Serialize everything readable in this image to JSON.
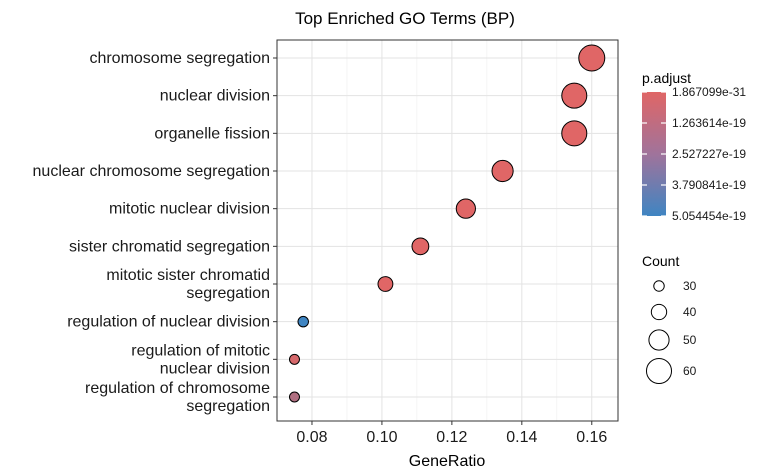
{
  "chart_data": {
    "type": "scatter",
    "title": "Top Enriched GO Terms (BP)",
    "xlabel": "GeneRatio",
    "ylabel": "",
    "xlim": [
      0.07,
      0.1675
    ],
    "xticks": [
      0.08,
      0.1,
      0.12,
      0.14,
      0.16
    ],
    "xtick_labels": [
      "0.08",
      "0.10",
      "0.12",
      "0.14",
      "0.16"
    ],
    "grid": true,
    "categories": [
      "chromosome segregation",
      "nuclear division",
      "organelle fission",
      "nuclear chromosome segregation",
      "mitotic nuclear division",
      "sister chromatid segregation",
      "mitotic sister chromatid segregation",
      "regulation of nuclear division",
      "regulation of mitotic nuclear division",
      "regulation of chromosome segregation"
    ],
    "category_label_lines": [
      [
        "chromosome segregation"
      ],
      [
        "nuclear division"
      ],
      [
        "organelle fission"
      ],
      [
        "nuclear chromosome segregation"
      ],
      [
        "mitotic nuclear division"
      ],
      [
        "sister chromatid segregation"
      ],
      [
        "mitotic sister chromatid",
        "segregation"
      ],
      [
        "regulation of nuclear division"
      ],
      [
        "regulation of mitotic",
        "nuclear division"
      ],
      [
        "regulation of chromosome",
        "segregation"
      ]
    ],
    "points": [
      {
        "term": "chromosome segregation",
        "gene_ratio": 0.16,
        "count": 62,
        "p_adjust": 1.5e-30
      },
      {
        "term": "nuclear division",
        "gene_ratio": 0.155,
        "count": 60,
        "p_adjust": 4e-30
      },
      {
        "term": "organelle fission",
        "gene_ratio": 0.155,
        "count": 60,
        "p_adjust": 4e-30
      },
      {
        "term": "nuclear chromosome segregation",
        "gene_ratio": 0.1345,
        "count": 52,
        "p_adjust": 1e-23
      },
      {
        "term": "mitotic nuclear division",
        "gene_ratio": 0.124,
        "count": 48,
        "p_adjust": 3e-22
      },
      {
        "term": "sister chromatid segregation",
        "gene_ratio": 0.111,
        "count": 43,
        "p_adjust": 5e-22
      },
      {
        "term": "mitotic sister chromatid segregation",
        "gene_ratio": 0.101,
        "count": 39,
        "p_adjust": 1e-21
      },
      {
        "term": "regulation of nuclear division",
        "gene_ratio": 0.0775,
        "count": 30,
        "p_adjust": 5.054454e-19
      },
      {
        "term": "regulation of mitotic nuclear division",
        "gene_ratio": 0.075,
        "count": 29,
        "p_adjust": 3e-20
      },
      {
        "term": "regulation of chromosome segregation",
        "gene_ratio": 0.075,
        "count": 29,
        "p_adjust": 1.5e-19
      }
    ],
    "color_legend": {
      "title": "p.adjust",
      "min": 1.867099e-31,
      "max": 5.054454e-19,
      "labels": [
        "1.867099e-31",
        "1.263614e-19",
        "2.527227e-19",
        "3.790841e-19",
        "5.054454e-19"
      ],
      "values": [
        1.867099e-31,
        1.263614e-19,
        2.527227e-19,
        3.790841e-19,
        5.054454e-19
      ],
      "low_color": "#E06666",
      "high_color": "#3F85C2"
    },
    "size_legend": {
      "title": "Count",
      "values": [
        30,
        40,
        50,
        60
      ],
      "labels": [
        "30",
        "40",
        "50",
        "60"
      ]
    }
  }
}
